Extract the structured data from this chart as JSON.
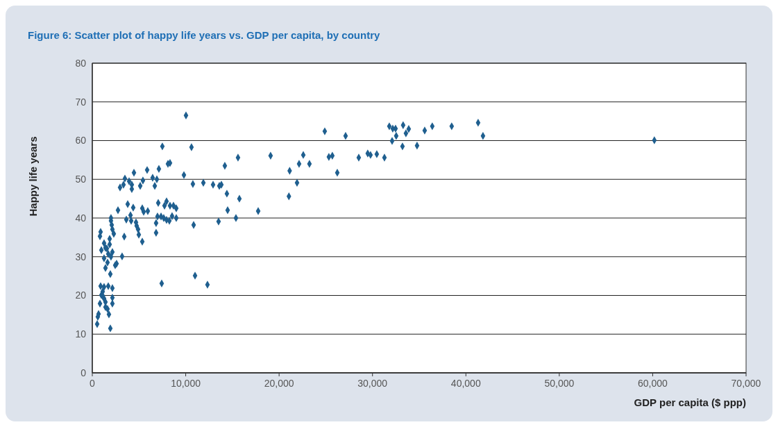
{
  "chart_data": {
    "type": "scatter",
    "title": "Figure 6: Scatter plot of happy life years vs. GDP per capita, by country",
    "xlabel": "GDP per capita ($ ppp)",
    "ylabel": "Happy life years",
    "marker": "diamond",
    "grid": "y",
    "xlim": [
      0,
      70000
    ],
    "ylim": [
      0,
      80
    ],
    "xticks": [
      0,
      {
        "value": 10000,
        "label": "10,000"
      },
      {
        "value": 20000,
        "label": "20,000"
      },
      {
        "value": 30000,
        "label": "30,000"
      },
      {
        "value": 40000,
        "label": "40,000"
      },
      {
        "value": 50000,
        "label": "50,000"
      },
      {
        "value": 60000,
        "label": "60,000"
      },
      {
        "value": 70000,
        "label": "70,000"
      }
    ],
    "yticks": [
      0,
      10,
      20,
      30,
      40,
      50,
      60,
      70,
      80
    ],
    "series": [
      {
        "color": "#1f5f8f",
        "x": [
          520,
          590,
          670,
          820,
          970,
          1110,
          1260,
          890,
          1410,
          1260,
          1410,
          1630,
          1780,
          1930,
          2150,
          2150,
          2150,
          1110,
          1710,
          820,
          890,
          970,
          1260,
          1410,
          1260,
          1410,
          1630,
          1710,
          1930,
          2000,
          2150,
          2000,
          2000,
          2080,
          2150,
          2300,
          2450,
          2600,
          3190,
          1860,
          1860,
          1560,
          2750,
          3420,
          3640,
          3790,
          4090,
          4160,
          4380,
          4680,
          4750,
          4900,
          4980,
          5350,
          5350,
          5500,
          5940,
          6830,
          6830,
          2970,
          3340,
          3490,
          3940,
          4230,
          4230,
          4460,
          5130,
          5420,
          5870,
          6460,
          6690,
          6910,
          7130,
          7500,
          8320,
          8100,
          7060,
          7730,
          7950,
          6980,
          7360,
          7650,
          7950,
          8250,
          8540,
          8320,
          8690,
          8990,
          8990,
          7430,
          9810,
          10030,
          10620,
          10770,
          10850,
          11000,
          12330,
          11890,
          12930,
          13600,
          13820,
          13520,
          14190,
          14410,
          14490,
          15380,
          15600,
          15750,
          17760,
          19090,
          21130,
          21050,
          21920,
          22140,
          22590,
          23250,
          24890,
          25330,
          25700,
          26230,
          27120,
          28530,
          29490,
          29790,
          30460,
          31280,
          31800,
          32170,
          32470,
          32100,
          32540,
          33210,
          33280,
          33580,
          33880,
          34770,
          35590,
          36400,
          38480,
          41310,
          41830,
          60180
        ],
        "values": [
          12.6,
          14.5,
          15.2,
          17.9,
          20.1,
          21,
          22.2,
          22.4,
          17,
          19.2,
          18.3,
          16.5,
          15.1,
          11.5,
          17.9,
          19.4,
          21.9,
          19.9,
          22.4,
          35.3,
          36.4,
          31.7,
          33.5,
          32.3,
          29.6,
          27.1,
          28.5,
          30.7,
          25.5,
          30,
          31.2,
          40,
          39.3,
          38.2,
          37.1,
          35.9,
          27.8,
          28.2,
          30.1,
          33.2,
          34.6,
          32.1,
          42,
          35.2,
          39.6,
          43.6,
          40.7,
          39.3,
          42.7,
          38.9,
          38,
          37.1,
          35.7,
          33.9,
          42.5,
          41.6,
          41.8,
          38.7,
          36.2,
          47.9,
          48.6,
          50.2,
          49.5,
          48.6,
          47.5,
          51.7,
          48.3,
          49.7,
          52.4,
          50.4,
          48.3,
          50,
          52.7,
          58.5,
          54.2,
          54,
          43.9,
          43.2,
          44.3,
          40.4,
          40.4,
          40,
          39.5,
          39.3,
          40.5,
          43.2,
          43.2,
          42.5,
          40,
          23.1,
          51.1,
          66.5,
          58.3,
          48.8,
          38.2,
          25.1,
          22.8,
          49.1,
          48.6,
          48.3,
          48.6,
          39.1,
          53.5,
          46.3,
          42,
          40,
          55.6,
          45,
          41.8,
          56.1,
          52.2,
          45.6,
          49.1,
          54,
          56.3,
          54,
          62.4,
          55.8,
          56.1,
          51.7,
          61.2,
          55.6,
          56.7,
          56.3,
          56.5,
          55.6,
          63.7,
          63.1,
          63.1,
          59.9,
          61.2,
          58.5,
          64,
          61.9,
          63,
          58.7,
          62.6,
          63.7,
          63.7,
          64.6,
          61.2,
          60.1
        ]
      }
    ]
  }
}
